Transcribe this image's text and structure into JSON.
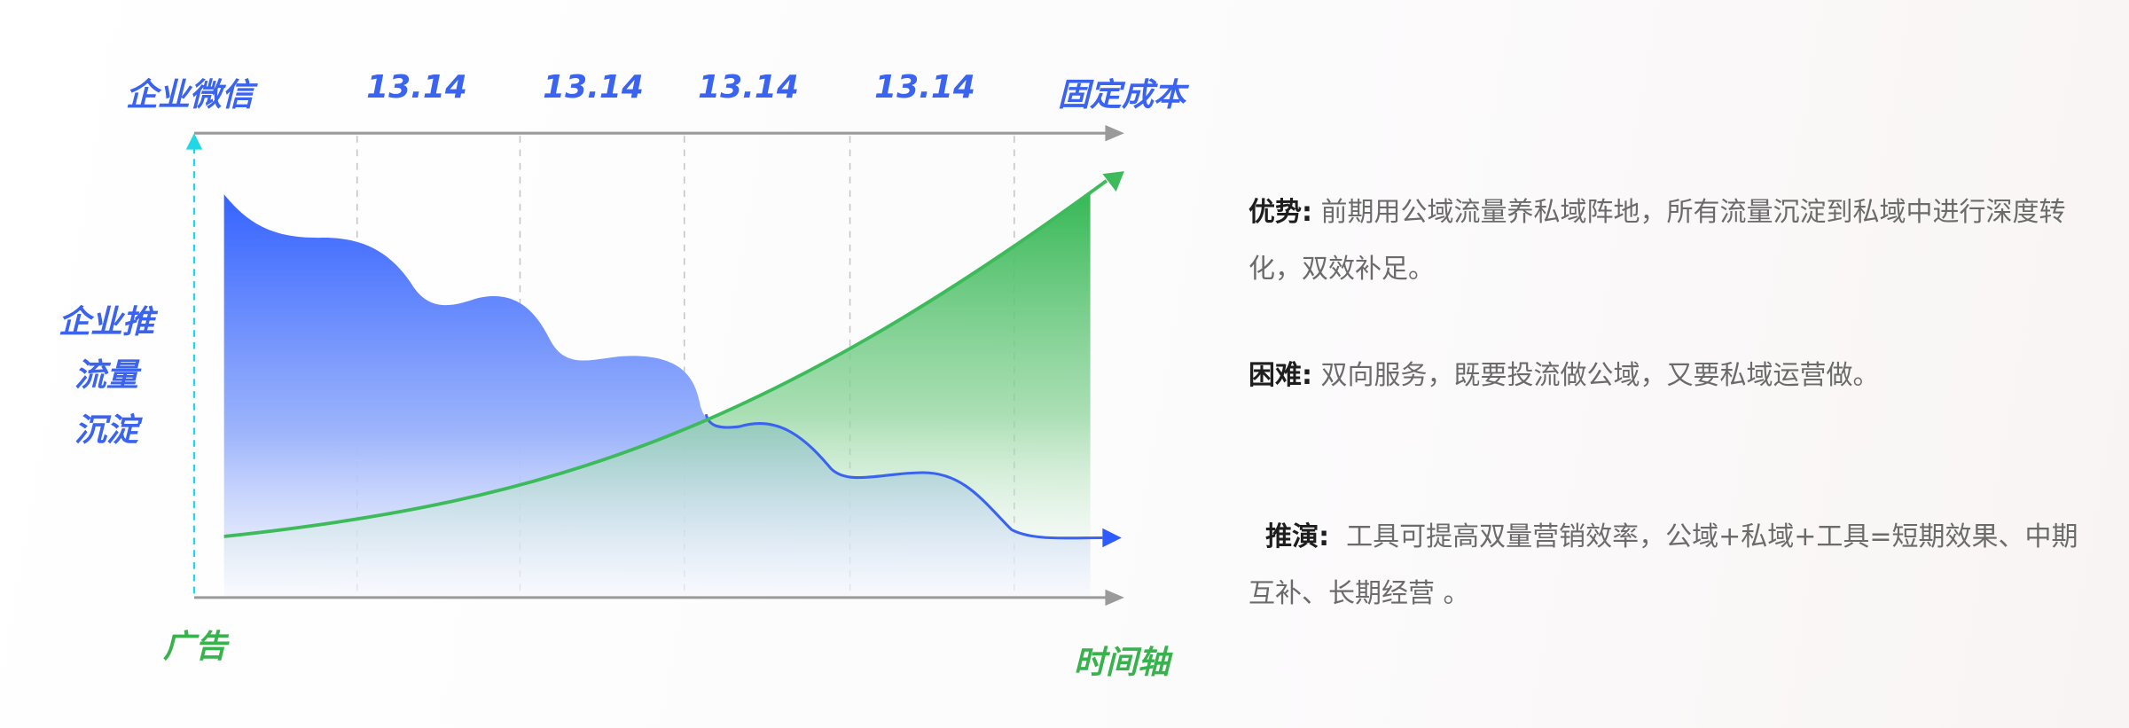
{
  "diagram": {
    "top_left_label": "企业微信",
    "top_ticks": [
      "13.14",
      "13.14",
      "13.14",
      "13.14"
    ],
    "top_right_label": "固定成本",
    "y_label_lines": [
      "企业推",
      "流量",
      "沉淀"
    ],
    "bottom_left_label": "广告",
    "bottom_right_label": "时间轴",
    "colors": {
      "blue_series": "#3a63f0",
      "green_series": "#3dbb5a",
      "axis": "#9a9a9a",
      "y_axis": "#1fd7e6"
    }
  },
  "notes": [
    {
      "title": "优势:",
      "text": " 前期用公域流量养私域阵地，所有流量沉淀到私域中进行深度转化，双效补足。"
    },
    {
      "title": "困难:",
      "text": " 双向服务，既要投流做公域，又要私域运营做。"
    },
    {
      "title": "推演:",
      "text": "  工具可提高双量营销效率，公域+私域+工具=短期效果、中期互补、长期经营 。"
    }
  ]
}
